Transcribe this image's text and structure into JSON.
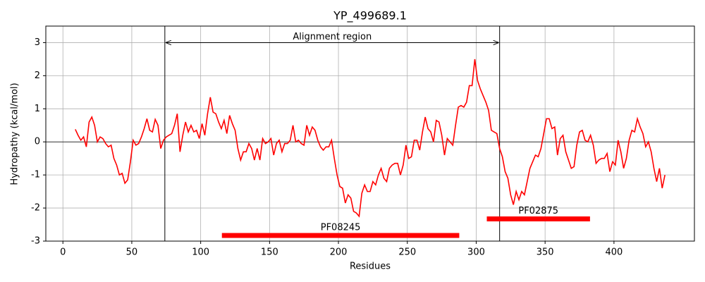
{
  "chart_data": {
    "type": "line",
    "title": "YP_499689.1",
    "xlabel": "Residues",
    "ylabel": "Hydropathy (kcal/mol)",
    "x": [
      9,
      11,
      13,
      15,
      17,
      19,
      21,
      23,
      25,
      27,
      29,
      31,
      33,
      35,
      37,
      39,
      41,
      43,
      45,
      47,
      49,
      51,
      53,
      55,
      57,
      59,
      61,
      63,
      65,
      67,
      69,
      71,
      73,
      75,
      77,
      79,
      81,
      83,
      85,
      87,
      89,
      91,
      93,
      95,
      97,
      99,
      101,
      103,
      105,
      107,
      109,
      111,
      113,
      115,
      117,
      119,
      121,
      123,
      125,
      127,
      129,
      131,
      133,
      135,
      137,
      139,
      141,
      143,
      145,
      147,
      149,
      151,
      153,
      155,
      157,
      159,
      161,
      163,
      165,
      167,
      169,
      171,
      173,
      175,
      177,
      179,
      181,
      183,
      185,
      187,
      189,
      191,
      193,
      195,
      197,
      199,
      201,
      203,
      205,
      207,
      209,
      211,
      213,
      215,
      217,
      219,
      221,
      223,
      225,
      227,
      229,
      231,
      233,
      235,
      237,
      239,
      241,
      243,
      245,
      247,
      249,
      251,
      253,
      255,
      257,
      259,
      261,
      263,
      265,
      267,
      269,
      271,
      273,
      275,
      277,
      279,
      281,
      283,
      285,
      287,
      289,
      291,
      293,
      295,
      297,
      299,
      301,
      303,
      305,
      307,
      309,
      311,
      313,
      315,
      317,
      319,
      321,
      323,
      325,
      327,
      329,
      331,
      333,
      335,
      337,
      339,
      341,
      343,
      345,
      347,
      349,
      351,
      353,
      355,
      357,
      359,
      361,
      363,
      365,
      367,
      369,
      371,
      373,
      375,
      377,
      379,
      381,
      383,
      385,
      387,
      389,
      391,
      393,
      395,
      397,
      399,
      401,
      403,
      405,
      407,
      409,
      411,
      413,
      415,
      417,
      419,
      421,
      423,
      425,
      427,
      429,
      431,
      433,
      435,
      437
    ],
    "values": [
      0.38,
      0.2,
      0.05,
      0.15,
      -0.15,
      0.6,
      0.75,
      0.5,
      0.0,
      0.15,
      0.1,
      -0.05,
      -0.15,
      -0.1,
      -0.5,
      -0.7,
      -1.0,
      -0.95,
      -1.25,
      -1.15,
      -0.6,
      0.05,
      -0.1,
      -0.05,
      0.15,
      0.4,
      0.7,
      0.35,
      0.3,
      0.68,
      0.5,
      -0.2,
      0.05,
      0.15,
      0.2,
      0.25,
      0.5,
      0.85,
      -0.3,
      0.2,
      0.6,
      0.3,
      0.5,
      0.3,
      0.35,
      0.1,
      0.55,
      0.2,
      0.85,
      1.35,
      0.9,
      0.85,
      0.6,
      0.4,
      0.65,
      0.25,
      0.8,
      0.55,
      0.35,
      -0.2,
      -0.55,
      -0.3,
      -0.3,
      -0.05,
      -0.2,
      -0.55,
      -0.2,
      -0.55,
      0.1,
      -0.05,
      0.0,
      0.1,
      -0.4,
      -0.05,
      0.05,
      -0.3,
      -0.05,
      -0.05,
      0.05,
      0.5,
      0.0,
      0.05,
      -0.05,
      -0.1,
      0.5,
      0.2,
      0.45,
      0.35,
      0.05,
      -0.15,
      -0.25,
      -0.15,
      -0.15,
      0.05,
      -0.5,
      -1.0,
      -1.35,
      -1.4,
      -1.85,
      -1.6,
      -1.7,
      -2.1,
      -2.15,
      -2.25,
      -1.55,
      -1.3,
      -1.5,
      -1.5,
      -1.2,
      -1.3,
      -1.0,
      -0.8,
      -1.1,
      -1.2,
      -0.8,
      -0.7,
      -0.65,
      -0.65,
      -1.0,
      -0.7,
      -0.1,
      -0.5,
      -0.45,
      0.05,
      0.05,
      -0.25,
      0.3,
      0.75,
      0.4,
      0.3,
      0.0,
      0.65,
      0.6,
      0.2,
      -0.4,
      0.1,
      0.0,
      -0.1,
      0.5,
      1.05,
      1.1,
      1.05,
      1.2,
      1.7,
      1.7,
      2.5,
      1.85,
      1.6,
      1.4,
      1.2,
      0.95,
      0.35,
      0.3,
      0.25,
      -0.2,
      -0.45,
      -0.9,
      -1.1,
      -1.6,
      -1.9,
      -1.5,
      -1.75,
      -1.5,
      -1.6,
      -1.2,
      -0.8,
      -0.6,
      -0.4,
      -0.45,
      -0.2,
      0.25,
      0.7,
      0.7,
      0.4,
      0.45,
      -0.4,
      0.1,
      0.2,
      -0.3,
      -0.55,
      -0.8,
      -0.75,
      -0.1,
      0.3,
      0.35,
      0.05,
      0.0,
      0.2,
      -0.1,
      -0.65,
      -0.55,
      -0.5,
      -0.5,
      -0.35,
      -0.9,
      -0.6,
      -0.7,
      0.05,
      -0.3,
      -0.8,
      -0.5,
      0.05,
      0.35,
      0.3,
      0.7,
      0.45,
      0.25,
      -0.15,
      0.0,
      -0.3,
      -0.8,
      -1.2,
      -0.8,
      -1.4,
      -1.0
    ],
    "color": "#ff0000",
    "xlim": [
      -12.4,
      458.4
    ],
    "ylim": [
      -3,
      3.5
    ],
    "xticks": [
      0,
      50,
      100,
      150,
      200,
      250,
      300,
      350,
      400
    ],
    "yticks": [
      -3,
      -2,
      -1,
      0,
      1,
      2,
      3
    ],
    "grid": true,
    "hline": 0,
    "alignment_region": [
      74,
      317
    ],
    "arrow_y": 3,
    "annotation": "Alignment region",
    "domains": [
      {
        "name": "PF08245",
        "start": 115.4,
        "end": 287.7,
        "y": -2.83
      },
      {
        "name": "PF02875",
        "start": 307.7,
        "end": 382.6,
        "y": -2.33
      }
    ]
  }
}
